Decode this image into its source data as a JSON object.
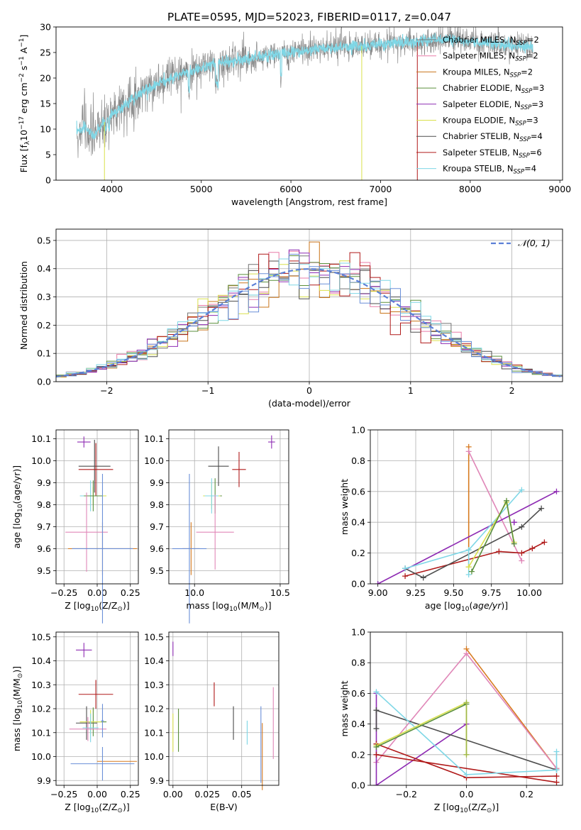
{
  "figure": {
    "title": "PLATE=0595, MJD=52023, FIBERID=0117, z=0.047"
  },
  "colors": {
    "chabrier_miles": "#737373",
    "salpeter_miles": "#e87ba8",
    "kroupa_miles": "#c9751b",
    "chabrier_elodie": "#5a8f3c",
    "salpeter_elodie": "#8e2bb3",
    "kroupa_elodie": "#d9e04c",
    "chabrier_stelib": "#4d4d4d",
    "salpeter_stelib": "#b01a1a",
    "kroupa_stelib": "#7fd7e6",
    "model_series_a": "#e087b8",
    "model_series_b": "#d77b20",
    "model_series_c": "#a0b84a",
    "model_series_d": "#6a8fd8",
    "gauss": "#5b7fd6",
    "grid": "#b0b0b0"
  },
  "legend": [
    {
      "label": "Chabrier MILES, N",
      "sub": "SSP",
      "suffix": "=2",
      "color": "#737373"
    },
    {
      "label": "Salpeter MILES, N",
      "sub": "SSP",
      "suffix": "=2",
      "color": "#e87ba8"
    },
    {
      "label": "Kroupa MILES, N",
      "sub": "SSP",
      "suffix": "=2",
      "color": "#c9751b"
    },
    {
      "label": "Chabrier ELODIE, N",
      "sub": "SSP",
      "suffix": "=3",
      "color": "#5a8f3c"
    },
    {
      "label": "Salpeter ELODIE, N",
      "sub": "SSP",
      "suffix": "=3",
      "color": "#8e2bb3"
    },
    {
      "label": "Kroupa ELODIE, N",
      "sub": "SSP",
      "suffix": "=3",
      "color": "#d9e04c"
    },
    {
      "label": "Chabrier STELIB, N",
      "sub": "SSP",
      "suffix": "=4",
      "color": "#4d4d4d"
    },
    {
      "label": "Salpeter STELIB, N",
      "sub": "SSP",
      "suffix": "=6",
      "color": "#b01a1a"
    },
    {
      "label": "Kroupa STELIB, N",
      "sub": "SSP",
      "suffix": "=4",
      "color": "#7fd7e6"
    }
  ],
  "chart_data": [
    {
      "type": "line",
      "id": "spectrum",
      "title": "PLATE=0595, MJD=52023, FIBERID=0117, z=0.047",
      "xlabel": "wavelength [Angstrom, rest frame]",
      "ylabel": "Flux [f_λ10^-17 erg cm^-2 s^-1 A^-1]",
      "xlim": [
        3380,
        9030
      ],
      "ylim": [
        0,
        30
      ],
      "xticks": [
        4000,
        5000,
        6000,
        7000,
        8000,
        9000
      ],
      "yticks": [
        0,
        5,
        10,
        15,
        20,
        25,
        30
      ],
      "continuum": {
        "x": [
          3610,
          3700,
          3800,
          3900,
          4000,
          4100,
          4200,
          4400,
          4600,
          4800,
          5000,
          5200,
          5400,
          5600,
          5800,
          6000,
          6200,
          6400,
          6600,
          6800,
          7000,
          7200,
          7400,
          7600,
          7800,
          8000,
          8200,
          8400,
          8600,
          8700
        ],
        "y": [
          9.5,
          10.5,
          8.5,
          11,
          13,
          14,
          15.5,
          18,
          19.5,
          21,
          22,
          23,
          23.5,
          24,
          24.5,
          25,
          25.5,
          25.8,
          26,
          26.3,
          26.5,
          27,
          27,
          27.5,
          27.5,
          27.2,
          27,
          26.5,
          26.3,
          26
        ]
      },
      "drop_lines": [
        {
          "x": 3920,
          "color": "#d9e04c"
        },
        {
          "x": 6790,
          "color": "#d9e04c"
        },
        {
          "x": 7410,
          "color": "#b01a1a"
        }
      ]
    },
    {
      "type": "bar",
      "id": "residuals",
      "xlabel": "(data-model)/error",
      "ylabel": "Normed distribution",
      "xlim": [
        -2.5,
        2.5
      ],
      "ylim": [
        0,
        0.54
      ],
      "xticks": [
        -2,
        -1,
        0,
        1,
        2
      ],
      "yticks": [
        0.0,
        0.1,
        0.2,
        0.3,
        0.4,
        0.5
      ],
      "bin_width": 0.1,
      "series": [
        {
          "name": "N(0,1)",
          "label": "𝒩(0, 1)",
          "type": "gaussian",
          "mu": 0,
          "sigma": 1
        }
      ]
    },
    {
      "type": "scatter",
      "id": "age_vs_z",
      "xlabel_main": "Z [log",
      "xlabel_sub": "10",
      "xlabel_tail": "(Z/Z",
      "xlabel_end": ")]",
      "ylabel": "age [log10(age/yr)]",
      "xlim": [
        -0.31,
        0.31
      ],
      "ylim": [
        9.44,
        10.14
      ],
      "xticks": [
        -0.25,
        0.0,
        0.25
      ],
      "yticks": [
        9.5,
        9.6,
        9.7,
        9.8,
        9.9,
        10.0,
        10.1
      ],
      "points": [
        {
          "x": -0.1,
          "y": 10.085,
          "xerr": 0.05,
          "yerr": 0.025,
          "color": "#8e2bb3"
        },
        {
          "x": -0.02,
          "y": 9.975,
          "xerr": 0.12,
          "yerr": 0.12,
          "color": "#4d4d4d"
        },
        {
          "x": -0.01,
          "y": 9.96,
          "xerr": 0.13,
          "yerr": 0.12,
          "color": "#b01a1a"
        },
        {
          "x": -0.03,
          "y": 9.84,
          "xerr": 0.1,
          "yerr": 0.04,
          "color": "#d9e04c"
        },
        {
          "x": -0.05,
          "y": 9.84,
          "xerr": 0.08,
          "yerr": 0.07,
          "color": "#7fd7e6"
        },
        {
          "x": -0.03,
          "y": 9.84,
          "xerr": 0.07,
          "yerr": 0.07,
          "color": "#5a8f3c"
        },
        {
          "x": -0.08,
          "y": 9.675,
          "xerr": 0.16,
          "yerr": 0.18,
          "color": "#e087b8"
        },
        {
          "x": 0.04,
          "y": 9.6,
          "xerr": 0.26,
          "yerr": 0.12,
          "color": "#d77b20"
        },
        {
          "x": 0.04,
          "y": 9.6,
          "xerr": 0.23,
          "yerr": 0.34,
          "color": "#6a8fd8"
        }
      ]
    },
    {
      "type": "scatter",
      "id": "age_vs_mass",
      "xlabel_main": "mass [log",
      "xlabel_sub": "10",
      "xlabel_tail": "(M/M",
      "xlabel_end": ")]",
      "xlim": [
        9.85,
        10.55
      ],
      "ylim": [
        9.44,
        10.14
      ],
      "xticks": [
        10.0,
        10.5
      ],
      "yticks": [
        9.5,
        9.6,
        9.7,
        9.8,
        9.9,
        10.0,
        10.1
      ],
      "points": [
        {
          "x": 10.45,
          "y": 10.085,
          "xerr": 0.02,
          "yerr": 0.03,
          "color": "#8e2bb3"
        },
        {
          "x": 10.14,
          "y": 9.975,
          "xerr": 0.06,
          "yerr": 0.09,
          "color": "#4d4d4d"
        },
        {
          "x": 10.26,
          "y": 9.96,
          "xerr": 0.04,
          "yerr": 0.08,
          "color": "#b01a1a"
        },
        {
          "x": 10.12,
          "y": 9.84,
          "xerr": 0.04,
          "yerr": 0.08,
          "color": "#5a8f3c"
        },
        {
          "x": 10.1,
          "y": 9.84,
          "xerr": 0.05,
          "yerr": 0.06,
          "color": "#d9e04c"
        },
        {
          "x": 10.1,
          "y": 9.84,
          "xerr": 0.04,
          "yerr": 0.08,
          "color": "#7fd7e6"
        },
        {
          "x": 10.12,
          "y": 9.675,
          "xerr": 0.11,
          "yerr": 0.17,
          "color": "#e087b8"
        },
        {
          "x": 9.98,
          "y": 9.6,
          "xerr": 0.05,
          "yerr": 0.12,
          "color": "#d77b20"
        },
        {
          "x": 9.97,
          "y": 9.6,
          "xerr": 0.1,
          "yerr": 0.34,
          "color": "#6a8fd8"
        }
      ]
    },
    {
      "type": "line",
      "id": "weight_vs_age",
      "xlabel": "age  [log10(age/yr)]",
      "ylabel": "mass weight",
      "xlim": [
        8.95,
        10.22
      ],
      "ylim": [
        0,
        1.0
      ],
      "xticks": [
        9.0,
        9.25,
        9.5,
        9.75,
        10.0
      ],
      "yticks": [
        0.0,
        0.2,
        0.4,
        0.6,
        0.8,
        1.0
      ],
      "series": [
        {
          "color": "#d77b20",
          "x": [
            9.6,
            9.6
          ],
          "y": [
            0.89,
            0.11
          ]
        },
        {
          "color": "#e087b8",
          "x": [
            9.6,
            9.95
          ],
          "y": [
            0.86,
            0.15
          ]
        },
        {
          "color": "#8e2bb3",
          "x": [
            9.0,
            10.18
          ],
          "y": [
            0.0,
            0.6
          ]
        },
        {
          "color": "#8e2bb3",
          "x": [
            9.9,
            9.9
          ],
          "y": [
            0.4,
            0.4
          ]
        },
        {
          "color": "#b01a1a",
          "x": [
            9.18,
            9.8,
            9.95,
            10.02,
            10.1
          ],
          "y": [
            0.05,
            0.21,
            0.2,
            0.23,
            0.27
          ]
        },
        {
          "color": "#4d4d4d",
          "x": [
            9.18,
            9.3,
            9.95,
            10.08
          ],
          "y": [
            0.1,
            0.04,
            0.37,
            0.49
          ]
        },
        {
          "color": "#7fd7e6",
          "x": [
            9.18,
            9.6,
            9.95
          ],
          "y": [
            0.1,
            0.22,
            0.61
          ]
        },
        {
          "color": "#7fd7e6",
          "x": [
            9.6,
            9.6
          ],
          "y": [
            0.06,
            0.22
          ]
        },
        {
          "color": "#d9e04c",
          "x": [
            9.6,
            9.85,
            9.9
          ],
          "y": [
            0.11,
            0.53,
            0.27
          ]
        },
        {
          "color": "#5a8f3c",
          "x": [
            9.62,
            9.85,
            9.9
          ],
          "y": [
            0.08,
            0.54,
            0.26
          ]
        }
      ]
    },
    {
      "type": "scatter",
      "id": "mass_vs_z",
      "xlabel_main": "Z [log",
      "xlabel_sub": "10",
      "xlabel_tail": "(Z/Z",
      "xlabel_end": ")]",
      "ylabel": "mass [log10(M/M☉)]",
      "xlim": [
        -0.31,
        0.31
      ],
      "ylim": [
        9.88,
        10.52
      ],
      "xticks": [
        -0.25,
        0.0,
        0.25
      ],
      "yticks": [
        9.9,
        10.0,
        10.1,
        10.2,
        10.3,
        10.4,
        10.5
      ],
      "points": [
        {
          "x": -0.1,
          "y": 10.445,
          "xerr": 0.06,
          "yerr": 0.03,
          "color": "#8e2bb3"
        },
        {
          "x": -0.01,
          "y": 10.26,
          "xerr": 0.13,
          "yerr": 0.06,
          "color": "#b01a1a"
        },
        {
          "x": -0.08,
          "y": 10.14,
          "xerr": 0.08,
          "yerr": 0.07,
          "color": "#4d4d4d"
        },
        {
          "x": -0.03,
          "y": 10.145,
          "xerr": 0.1,
          "yerr": 0.06,
          "color": "#5a8f3c"
        },
        {
          "x": -0.05,
          "y": 10.145,
          "xerr": 0.08,
          "yerr": 0.05,
          "color": "#d9e04c"
        },
        {
          "x": -0.05,
          "y": 10.12,
          "xerr": 0.06,
          "yerr": 0.06,
          "color": "#7fd7e6"
        },
        {
          "x": -0.07,
          "y": 10.115,
          "xerr": 0.14,
          "yerr": 0.05,
          "color": "#e087b8"
        },
        {
          "x": 0.04,
          "y": 10.15,
          "xerr": 0.01,
          "yerr": 0.07,
          "color": "#6a8fd8"
        },
        {
          "x": 0.15,
          "y": 9.98,
          "xerr": 0.15,
          "yerr": 0.0,
          "color": "#d77b20"
        },
        {
          "x": 0.04,
          "y": 9.97,
          "xerr": 0.24,
          "yerr": 0.07,
          "color": "#6a8fd8"
        }
      ]
    },
    {
      "type": "scatter",
      "id": "mass_vs_ebv",
      "xlabel": "E(B-V)",
      "xlim": [
        -0.003,
        0.077
      ],
      "ylim": [
        9.88,
        10.52
      ],
      "xticks": [
        0.0,
        0.025,
        0.05
      ],
      "xticklabels": [
        "0.00",
        "0.025",
        "0.05"
      ],
      "yticks": [
        9.9,
        10.0,
        10.1,
        10.2,
        10.3,
        10.4,
        10.5
      ],
      "points": [
        {
          "x": 0.0,
          "y": 10.45,
          "yerr": 0.03,
          "color": "#8e2bb3"
        },
        {
          "x": 0.0,
          "y": 10.1,
          "yerr": 0.08,
          "color": "#d9e04c"
        },
        {
          "x": 0.004,
          "y": 10.11,
          "yerr": 0.09,
          "color": "#5a8f3c"
        },
        {
          "x": 0.03,
          "y": 10.26,
          "yerr": 0.05,
          "color": "#b01a1a"
        },
        {
          "x": 0.044,
          "y": 10.14,
          "yerr": 0.07,
          "color": "#4d4d4d"
        },
        {
          "x": 0.054,
          "y": 10.1,
          "yerr": 0.05,
          "color": "#7fd7e6"
        },
        {
          "x": 0.064,
          "y": 10.05,
          "yerr": 0.16,
          "color": "#6a8fd8"
        },
        {
          "x": 0.065,
          "y": 10.0,
          "yerr": 0.14,
          "color": "#d77b20"
        },
        {
          "x": 0.073,
          "y": 10.14,
          "yerr": 0.15,
          "color": "#e087b8"
        }
      ]
    },
    {
      "type": "line",
      "id": "weight_vs_z",
      "xlabel_main": "Z [log",
      "xlabel_sub": "10",
      "xlabel_tail": "(Z/Z",
      "xlabel_end": ")]",
      "ylabel": "mass weight",
      "xlim": [
        -0.32,
        0.32
      ],
      "ylim": [
        0,
        1.0
      ],
      "xticks": [
        -0.2,
        0.0,
        0.2
      ],
      "yticks": [
        0.0,
        0.2,
        0.4,
        0.6,
        0.8,
        1.0
      ],
      "series": [
        {
          "color": "#d77b20",
          "x": [
            0.0,
            0.3
          ],
          "y": [
            0.89,
            0.11
          ]
        },
        {
          "color": "#e087b8",
          "x": [
            -0.3,
            0.0,
            0.3
          ],
          "y": [
            0.15,
            0.86,
            0.11
          ]
        },
        {
          "color": "#8e2bb3",
          "x": [
            -0.3,
            -0.3,
            0.0
          ],
          "y": [
            0.6,
            0.0,
            0.4
          ]
        },
        {
          "color": "#b01a1a",
          "x": [
            -0.3,
            0.0,
            0.3
          ],
          "y": [
            0.27,
            0.05,
            0.06
          ]
        },
        {
          "color": "#b01a1a",
          "x": [
            -0.3,
            0.3
          ],
          "y": [
            0.2,
            0.02
          ]
        },
        {
          "color": "#4d4d4d",
          "x": [
            -0.3,
            0.3
          ],
          "y": [
            0.49,
            0.1
          ]
        },
        {
          "color": "#4d4d4d",
          "x": [
            -0.3,
            -0.3
          ],
          "y": [
            0.37,
            0.49
          ]
        },
        {
          "color": "#7fd7e6",
          "x": [
            -0.3,
            0.0,
            0.3
          ],
          "y": [
            0.61,
            0.07,
            0.1
          ]
        },
        {
          "color": "#7fd7e6",
          "x": [
            0.3,
            0.3
          ],
          "y": [
            0.1,
            0.22
          ]
        },
        {
          "color": "#d9e04c",
          "x": [
            -0.3,
            0.0,
            0.0
          ],
          "y": [
            0.26,
            0.54,
            0.2
          ]
        },
        {
          "color": "#5a8f3c",
          "x": [
            -0.3,
            0.0
          ],
          "y": [
            0.25,
            0.53
          ]
        },
        {
          "color": "#a0b84a",
          "x": [
            0.0,
            0.0
          ],
          "y": [
            0.2,
            0.54
          ]
        }
      ]
    }
  ]
}
